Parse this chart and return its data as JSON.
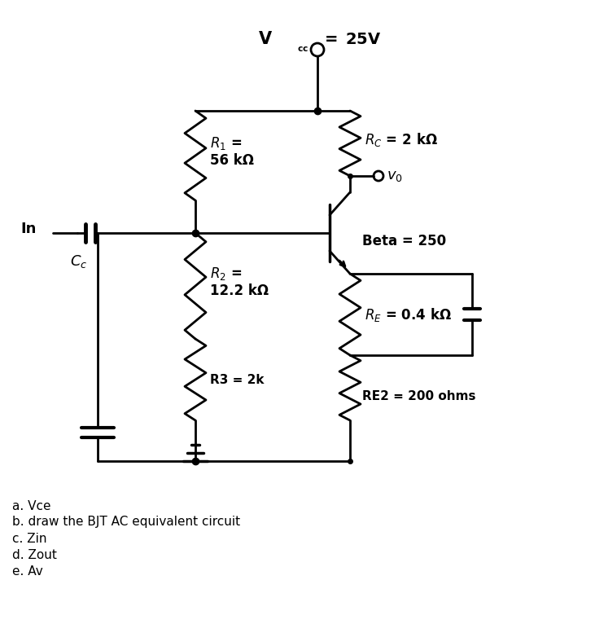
{
  "title": "V_{cc} = 25V",
  "vcc_label": "$V_{cc}$= 25V",
  "R1_label": "$R_1$ =\n56 kΩ",
  "R2_label": "$R_2$ =\n12.2 kΩ",
  "R3_label": "R3 = 2k",
  "RC_label": "$R_C$ = 2 kΩ",
  "RE_label": "$R_E$ = 0.4 kΩ",
  "RE2_label": "RE2 = 200 ohms",
  "beta_label": "Beta = 250",
  "vo_label": "$v_0$",
  "in_label": "In",
  "cc_label": "$C_c$",
  "questions": [
    "a. Vce",
    "b. draw the BJT AC equivalent circuit",
    "c. Zin",
    "d. Zout",
    "e. Av"
  ],
  "bg_color": "#ffffff",
  "line_color": "#000000",
  "lw": 2.0
}
